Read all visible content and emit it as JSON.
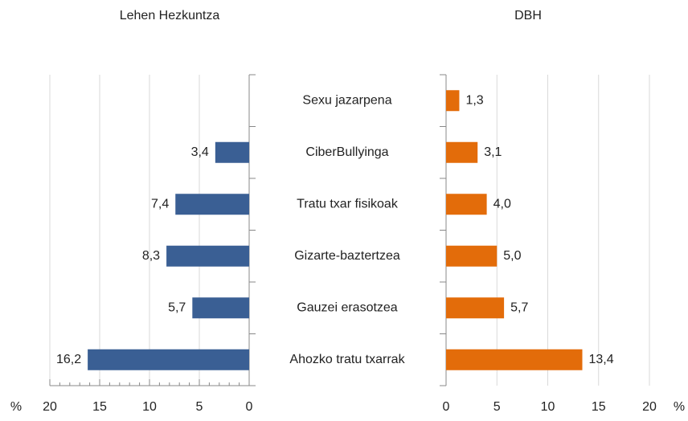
{
  "chart_data": [
    {
      "type": "bar",
      "orientation": "horizontal",
      "title": "Lehen Hezkuntza",
      "xlabel": "%",
      "categories": [
        "Sexu jazarpena",
        "CiberBullyinga",
        "Tratu txar fisikoak",
        "Gizarte-baztertzea",
        "Gauzei erasotzea",
        "Ahozko tratu txarrak"
      ],
      "values": [
        null,
        3.4,
        7.4,
        8.3,
        5.7,
        16.2
      ],
      "value_labels": [
        null,
        "3,4",
        "7,4",
        "8,3",
        "5,7",
        "16,2"
      ],
      "color": "#3a5f94",
      "xlim": [
        20,
        0
      ],
      "xticks": [
        20,
        15,
        10,
        5,
        0
      ],
      "grid": true
    },
    {
      "type": "bar",
      "orientation": "horizontal",
      "title": "DBH",
      "xlabel": "%",
      "values": [
        1.3,
        3.1,
        4.0,
        5.0,
        5.7,
        13.4
      ],
      "value_labels": [
        "1,3",
        "3,1",
        "4,0",
        "5,0",
        "5,7",
        "13,4"
      ],
      "color": "#e36c0a",
      "xlim": [
        0,
        20
      ],
      "xticks": [
        0,
        5,
        10,
        15,
        20
      ],
      "grid": true
    }
  ]
}
